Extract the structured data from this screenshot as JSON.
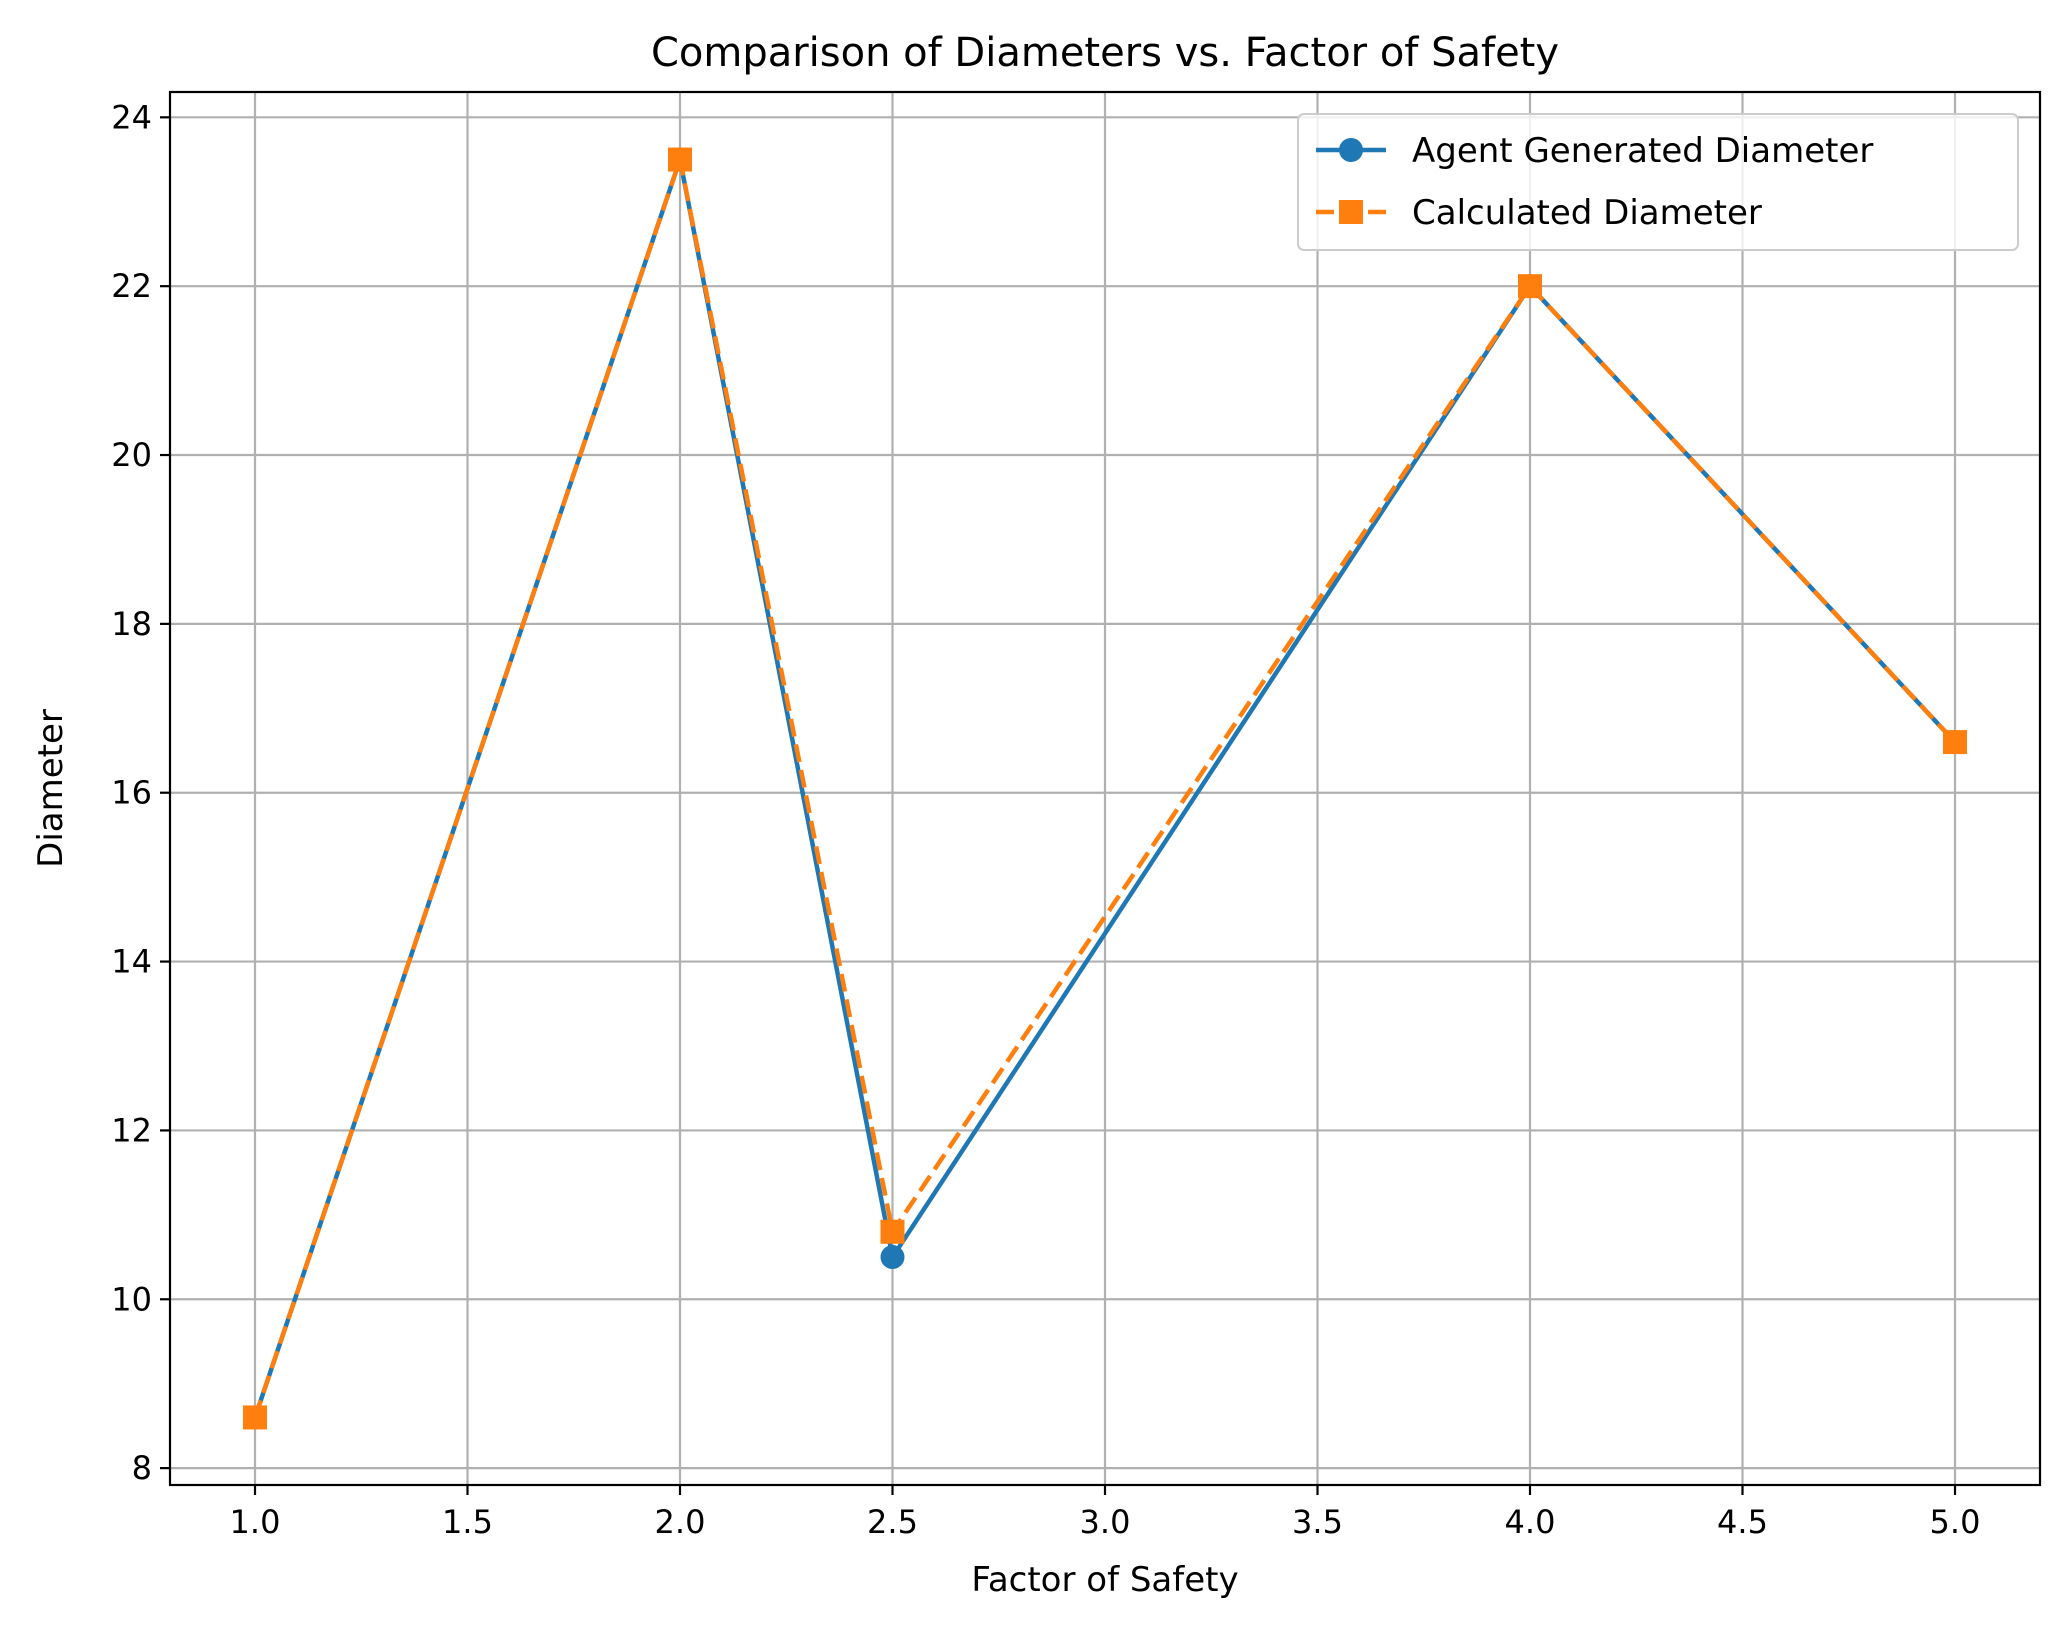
{
  "chart_data": {
    "type": "line",
    "title": "Comparison of Diameters vs. Factor of Safety",
    "xlabel": "Factor of Safety",
    "ylabel": "Diameter",
    "xlim": [
      0.8,
      5.2
    ],
    "ylim": [
      7.8,
      24.3
    ],
    "xticks": [
      1.0,
      1.5,
      2.0,
      2.5,
      3.0,
      3.5,
      4.0,
      4.5,
      5.0
    ],
    "xtick_labels": [
      "1.0",
      "1.5",
      "2.0",
      "2.5",
      "3.0",
      "3.5",
      "4.0",
      "4.5",
      "5.0"
    ],
    "yticks": [
      8,
      10,
      12,
      14,
      16,
      18,
      20,
      22,
      24
    ],
    "ytick_labels": [
      "8",
      "10",
      "12",
      "14",
      "16",
      "18",
      "20",
      "22",
      "24"
    ],
    "grid": true,
    "legend_position": "top-right",
    "x": [
      1.0,
      2.0,
      2.5,
      4.0,
      5.0
    ],
    "series": [
      {
        "name": "Agent Generated Diameter",
        "values": [
          8.6,
          23.5,
          10.5,
          22.0,
          16.6
        ],
        "color": "#1f77b4",
        "line_style": "solid",
        "marker": "circle"
      },
      {
        "name": "Calculated Diameter",
        "values": [
          8.6,
          23.5,
          10.8,
          22.0,
          16.6
        ],
        "color": "#ff7f0e",
        "line_style": "dashed",
        "marker": "square"
      }
    ]
  }
}
